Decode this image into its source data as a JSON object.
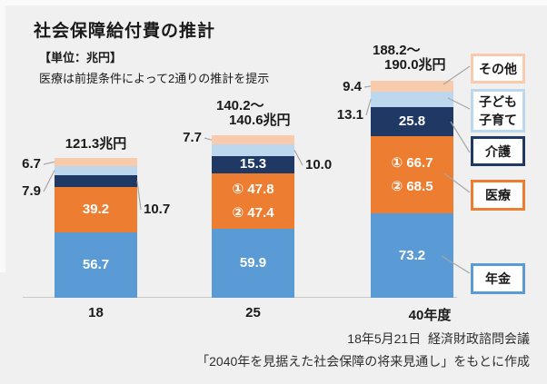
{
  "page": {
    "title": "社会保障給付費の推計",
    "unit_label": "【単位：兆円】",
    "note": "医療は前提条件によって2通りの推計を提示",
    "source_line1": "18年5月21日  経済財政諮問会議",
    "source_line2": "「2040年を見据えた社会保障の将来見通し」をもとに作成"
  },
  "colors": {
    "background": "#F0F0F0",
    "pension": "#5B9BD5",
    "medical": "#ED7D31",
    "nursing_care": "#1F3864",
    "child_rearing": "#BDD7EE",
    "other": "#F8CBAD",
    "leader_line": "#A6A6A6",
    "inside_label": "#FFFFFF",
    "text": "#1A1A1A"
  },
  "legend": [
    {
      "key": "other",
      "lines": [
        "その他"
      ],
      "color": "#F8CBAD"
    },
    {
      "key": "child-rearing",
      "lines": [
        "子ども",
        "子育て"
      ],
      "color": "#BDD7EE"
    },
    {
      "key": "nursing-care",
      "lines": [
        "介護"
      ],
      "color": "#1F3864"
    },
    {
      "key": "medical",
      "lines": [
        "医療"
      ],
      "color": "#ED7D31"
    },
    {
      "key": "pension",
      "lines": [
        "年金"
      ],
      "color": "#5B9BD5"
    }
  ],
  "chart_data": {
    "type": "bar",
    "stacked": true,
    "unit": "兆円",
    "categories": [
      "18",
      "25",
      "40年度"
    ],
    "totals_label_lines": [
      [
        "121.3兆円"
      ],
      [
        "140.2～",
        "140.6兆円"
      ],
      [
        "188.2～",
        "190.0兆円"
      ]
    ],
    "totals_range": [
      [
        121.3,
        121.3
      ],
      [
        140.2,
        140.6
      ],
      [
        188.2,
        190.0
      ]
    ],
    "series_order_bottom_to_top": [
      "年金",
      "医療",
      "介護",
      "子ども子育て",
      "その他"
    ],
    "series": [
      {
        "name": "年金",
        "key": "pension",
        "color": "#5B9BD5",
        "values": [
          56.7,
          59.9,
          73.2
        ]
      },
      {
        "name": "医療",
        "key": "medical",
        "color": "#ED7D31",
        "values_case1": [
          39.2,
          47.8,
          66.7
        ],
        "values_case2": [
          39.2,
          47.4,
          68.5
        ]
      },
      {
        "name": "介護",
        "key": "nursing-care",
        "color": "#1F3864",
        "values": [
          10.7,
          15.3,
          25.8
        ]
      },
      {
        "name": "子ども子育て",
        "key": "child-rearing",
        "color": "#BDD7EE",
        "values": [
          7.9,
          10.0,
          13.1
        ]
      },
      {
        "name": "その他",
        "key": "other",
        "color": "#F8CBAD",
        "values": [
          6.7,
          7.7,
          9.4
        ]
      }
    ],
    "bars": [
      {
        "category": "18",
        "segments": [
          {
            "series": "年金",
            "value": 56.7,
            "labels": [
              "56.7"
            ],
            "label_pos": "inside"
          },
          {
            "series": "医療",
            "value": 39.2,
            "labels": [
              "39.2"
            ],
            "label_pos": "inside"
          },
          {
            "series": "介護",
            "value": 10.7,
            "labels": [
              "10.7"
            ],
            "label_pos": "right"
          },
          {
            "series": "子ども子育て",
            "value": 7.9,
            "labels": [
              "7.9"
            ],
            "label_pos": "left"
          },
          {
            "series": "その他",
            "value": 6.7,
            "labels": [
              "6.7"
            ],
            "label_pos": "left"
          }
        ]
      },
      {
        "category": "25",
        "segments": [
          {
            "series": "年金",
            "value": 59.9,
            "labels": [
              "59.9"
            ],
            "label_pos": "inside"
          },
          {
            "series": "医療",
            "value": 47.8,
            "labels": [
              "① 47.8",
              "② 47.4"
            ],
            "label_pos": "inside"
          },
          {
            "series": "介護",
            "value": 15.3,
            "labels": [
              "15.3"
            ],
            "label_pos": "inside"
          },
          {
            "series": "子ども子育て",
            "value": 10.0,
            "labels": [
              "10.0"
            ],
            "label_pos": "right"
          },
          {
            "series": "その他",
            "value": 7.7,
            "labels": [
              "7.7"
            ],
            "label_pos": "left"
          }
        ]
      },
      {
        "category": "40年度",
        "segments": [
          {
            "series": "年金",
            "value": 73.2,
            "labels": [
              "73.2"
            ],
            "label_pos": "inside"
          },
          {
            "series": "医療",
            "value": 66.7,
            "labels": [
              "① 66.7",
              "② 68.5"
            ],
            "label_pos": "inside"
          },
          {
            "series": "介護",
            "value": 25.8,
            "labels": [
              "25.8"
            ],
            "label_pos": "inside"
          },
          {
            "series": "子ども子育て",
            "value": 13.1,
            "labels": [
              "13.1"
            ],
            "label_pos": "left"
          },
          {
            "series": "その他",
            "value": 9.4,
            "labels": [
              "9.4"
            ],
            "label_pos": "left"
          }
        ]
      }
    ]
  }
}
